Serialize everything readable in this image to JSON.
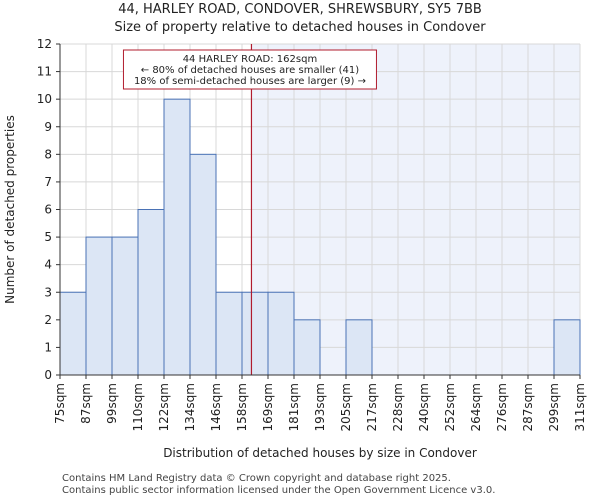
{
  "chart_data": {
    "type": "bar",
    "title": "44, HARLEY ROAD, CONDOVER, SHREWSBURY, SY5 7BB",
    "subtitle": "Size of property relative to detached houses in Condover",
    "xlabel": "Distribution of detached houses by size in Condover",
    "ylabel": "Number of detached properties",
    "bin_edges": [
      75,
      87,
      99,
      110,
      122,
      134,
      146,
      158,
      169,
      181,
      193,
      205,
      217,
      228,
      240,
      252,
      264,
      276,
      287,
      299,
      311
    ],
    "tick_labels": [
      "75sqm",
      "87sqm",
      "99sqm",
      "110sqm",
      "122sqm",
      "134sqm",
      "146sqm",
      "158sqm",
      "169sqm",
      "181sqm",
      "193sqm",
      "205sqm",
      "217sqm",
      "228sqm",
      "240sqm",
      "252sqm",
      "264sqm",
      "276sqm",
      "287sqm",
      "299sqm",
      "311sqm"
    ],
    "values": [
      3,
      5,
      5,
      6,
      10,
      8,
      3,
      3,
      3,
      2,
      0,
      2,
      0,
      0,
      0,
      0,
      0,
      0,
      0,
      2
    ],
    "ylim": [
      0,
      12
    ],
    "yticks": [
      0,
      1,
      2,
      3,
      4,
      5,
      6,
      7,
      8,
      9,
      10,
      11,
      12
    ],
    "grid": true,
    "marker_value": 162,
    "annotation": {
      "line1": "44 HARLEY ROAD: 162sqm",
      "line2": "← 80% of detached houses are smaller (41)",
      "line3": "18% of semi-detached houses are larger (9) →"
    },
    "colors": {
      "bar_fill": "#dce6f5",
      "bar_stroke": "#4a72b5",
      "marker": "#b01c2e",
      "shade": "#eef2fb",
      "grid": "#d8d8d8"
    }
  },
  "footer": {
    "line1": "Contains HM Land Registry data © Crown copyright and database right 2025.",
    "line2": "Contains public sector information licensed under the Open Government Licence v3.0."
  }
}
